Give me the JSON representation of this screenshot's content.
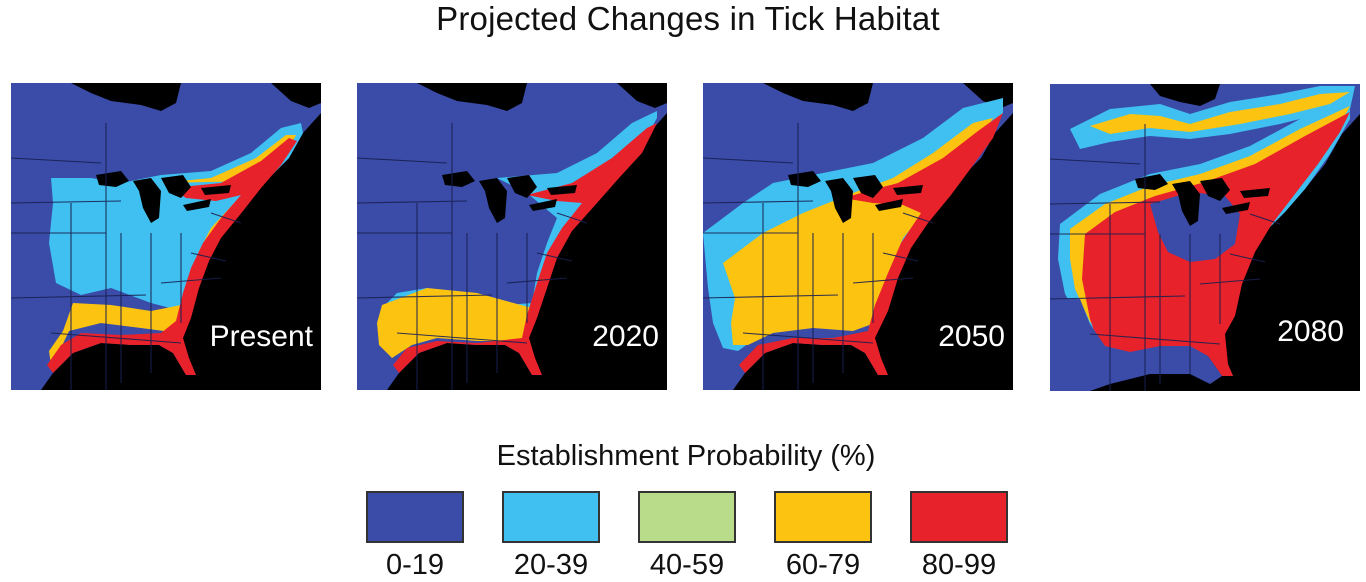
{
  "title": "Projected Changes in Tick Habitat",
  "panels": [
    {
      "label": "Present"
    },
    {
      "label": "2020"
    },
    {
      "label": "2050"
    },
    {
      "label": "2080"
    }
  ],
  "legend": {
    "title": "Establishment Probability (%)",
    "items": [
      {
        "label": "0-19",
        "color": "#3a4ca8"
      },
      {
        "label": "20-39",
        "color": "#3fc0f0"
      },
      {
        "label": "40-59",
        "color": "#b9dc8a"
      },
      {
        "label": "60-79",
        "color": "#fcc410"
      },
      {
        "label": "80-99",
        "color": "#e8222a"
      }
    ]
  },
  "colors": {
    "land_low": "#3a4ca8",
    "ocean": "#000000",
    "lakes": "#000000",
    "borders": "#1a1f50"
  }
}
